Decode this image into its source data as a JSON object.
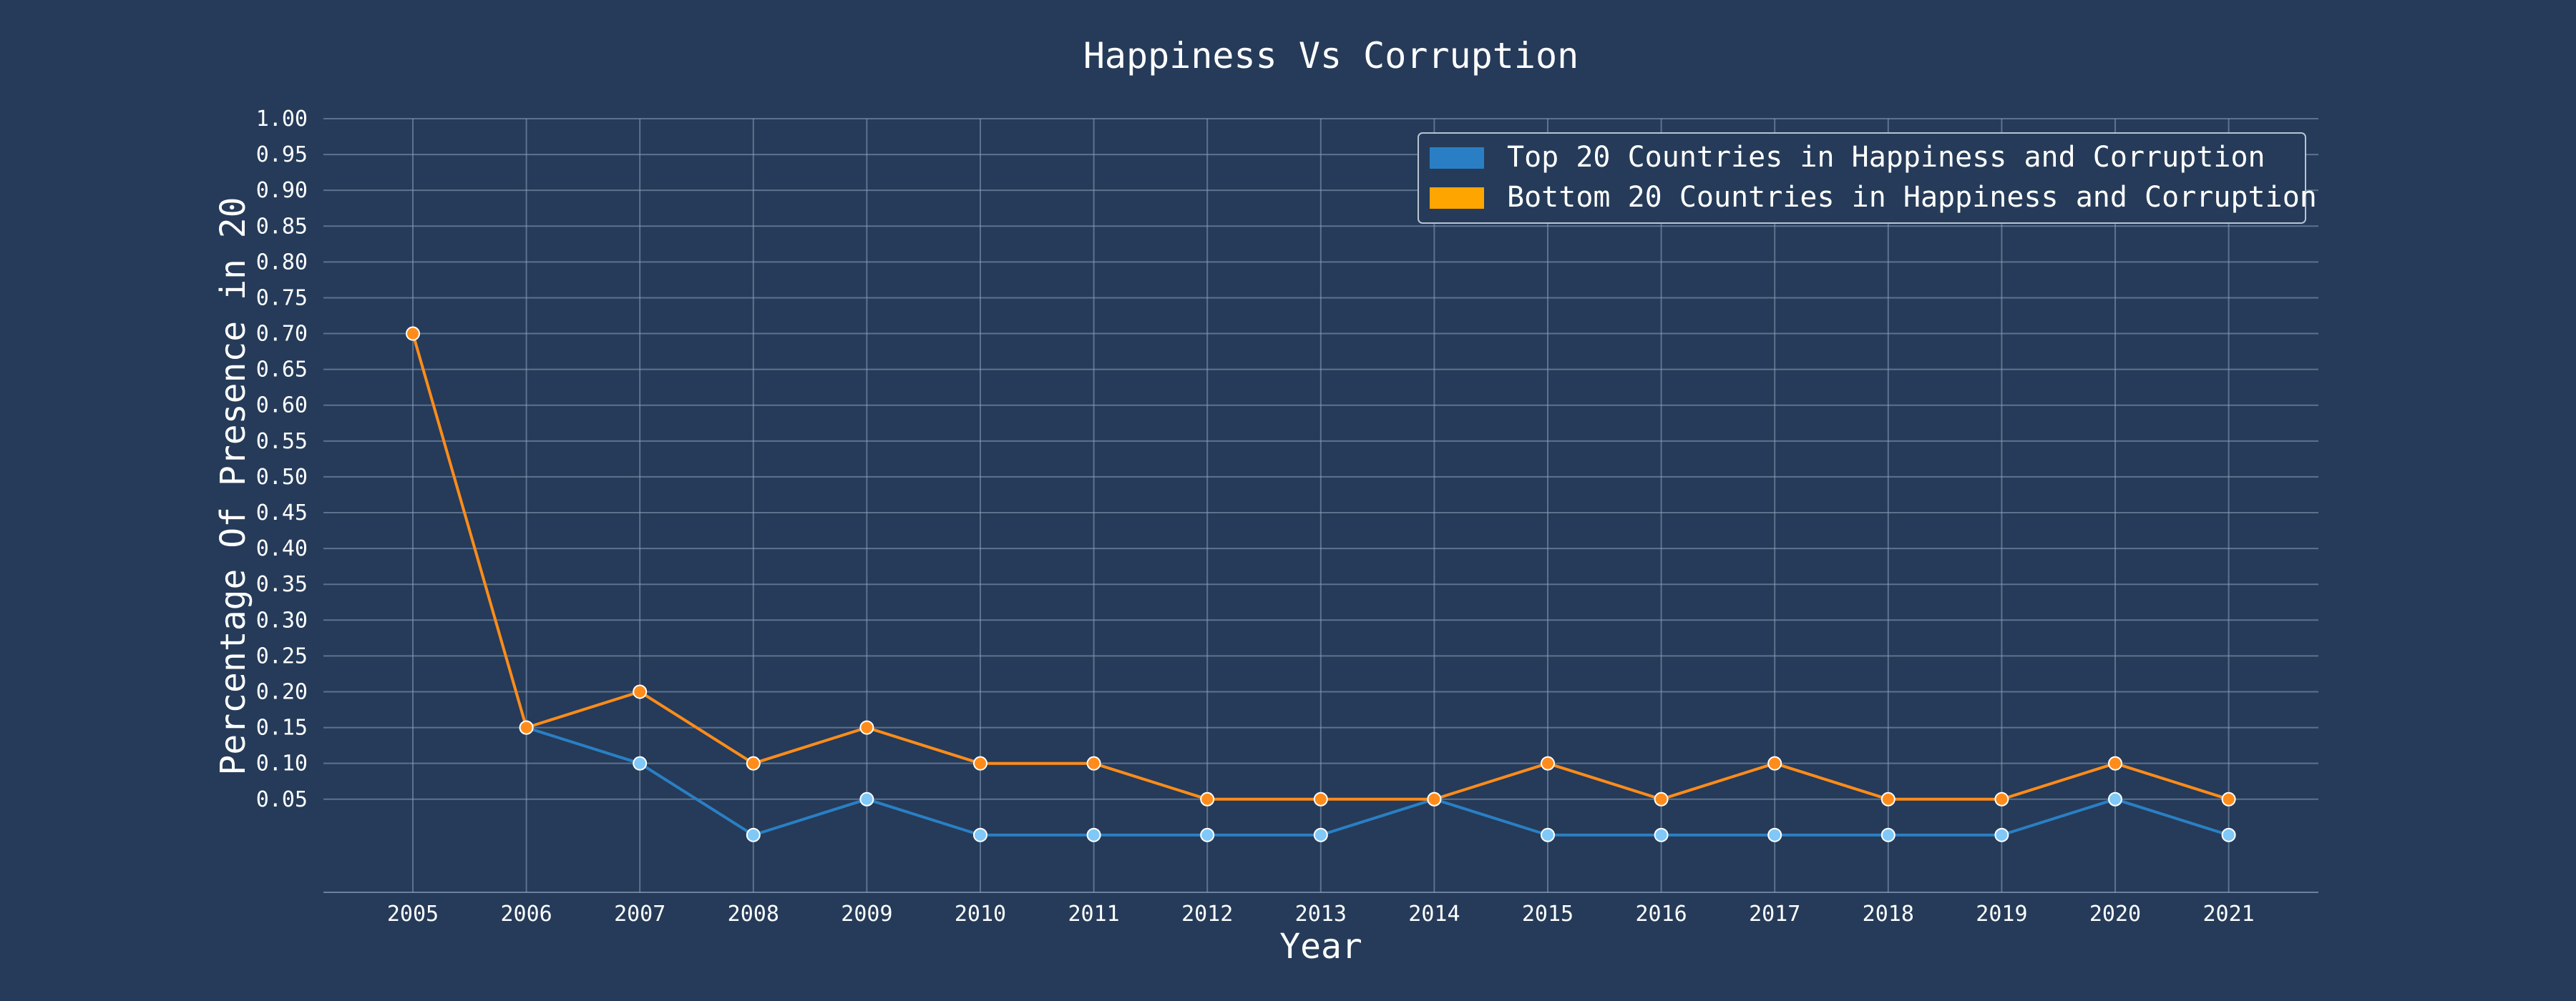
{
  "chart_data": {
    "type": "line",
    "title": "Happiness Vs Corruption",
    "xlabel": "Year",
    "ylabel": "Percentage Of Presence in 20",
    "x": [
      "2005",
      "2006",
      "2007",
      "2008",
      "2009",
      "2010",
      "2011",
      "2012",
      "2013",
      "2014",
      "2015",
      "2016",
      "2017",
      "2018",
      "2019",
      "2020",
      "2021"
    ],
    "series": [
      {
        "name": "Top 20 Countries in Happiness and Corruption",
        "color": "#2a7fc4",
        "marker_color": "#7fc8f8",
        "values": [
          null,
          0.15,
          0.1,
          0.0,
          0.05,
          0.0,
          0.0,
          0.0,
          0.0,
          0.05,
          0.0,
          0.0,
          0.0,
          0.0,
          0.0,
          0.05,
          0.0
        ]
      },
      {
        "name": "Bottom 20 Countries in Happiness and Corruption",
        "color": "#ff8c1a",
        "marker_color": "#ff8c1a",
        "legend_color": "#ffa500",
        "values": [
          0.7,
          0.15,
          0.2,
          0.1,
          0.15,
          0.1,
          0.1,
          0.05,
          0.05,
          0.05,
          0.1,
          0.05,
          0.1,
          0.05,
          0.05,
          0.1,
          0.05
        ]
      }
    ],
    "yticks": [
      "0.05",
      "0.10",
      "0.15",
      "0.20",
      "0.25",
      "0.30",
      "0.35",
      "0.40",
      "0.45",
      "0.50",
      "0.55",
      "0.60",
      "0.65",
      "0.70",
      "0.75",
      "0.80",
      "0.85",
      "0.90",
      "0.95",
      "1.00"
    ],
    "ylim": [
      -0.08,
      1.0
    ],
    "grid": true,
    "legend_position": "top-right",
    "background": "#253b59",
    "grid_color": "#8aa0b8"
  }
}
